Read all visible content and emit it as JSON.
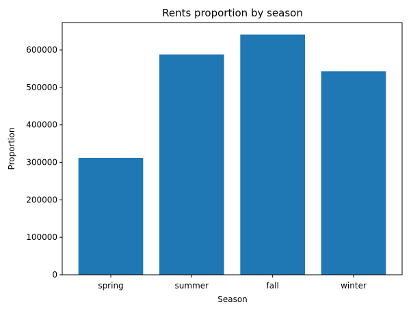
{
  "chart_data": {
    "type": "bar",
    "title": "Rents proportion by season",
    "xlabel": "Season",
    "ylabel": "Proportion",
    "categories": [
      "spring",
      "summer",
      "fall",
      "winter"
    ],
    "values": [
      312000,
      588000,
      641000,
      543000
    ],
    "ylim": [
      0,
      673050
    ],
    "yticks": [
      0,
      100000,
      200000,
      300000,
      400000,
      500000,
      600000
    ],
    "ytick_labels": [
      "0",
      "100000",
      "200000",
      "300000",
      "400000",
      "500000",
      "600000"
    ],
    "bar_color": "#1f77b4",
    "grid": false
  }
}
